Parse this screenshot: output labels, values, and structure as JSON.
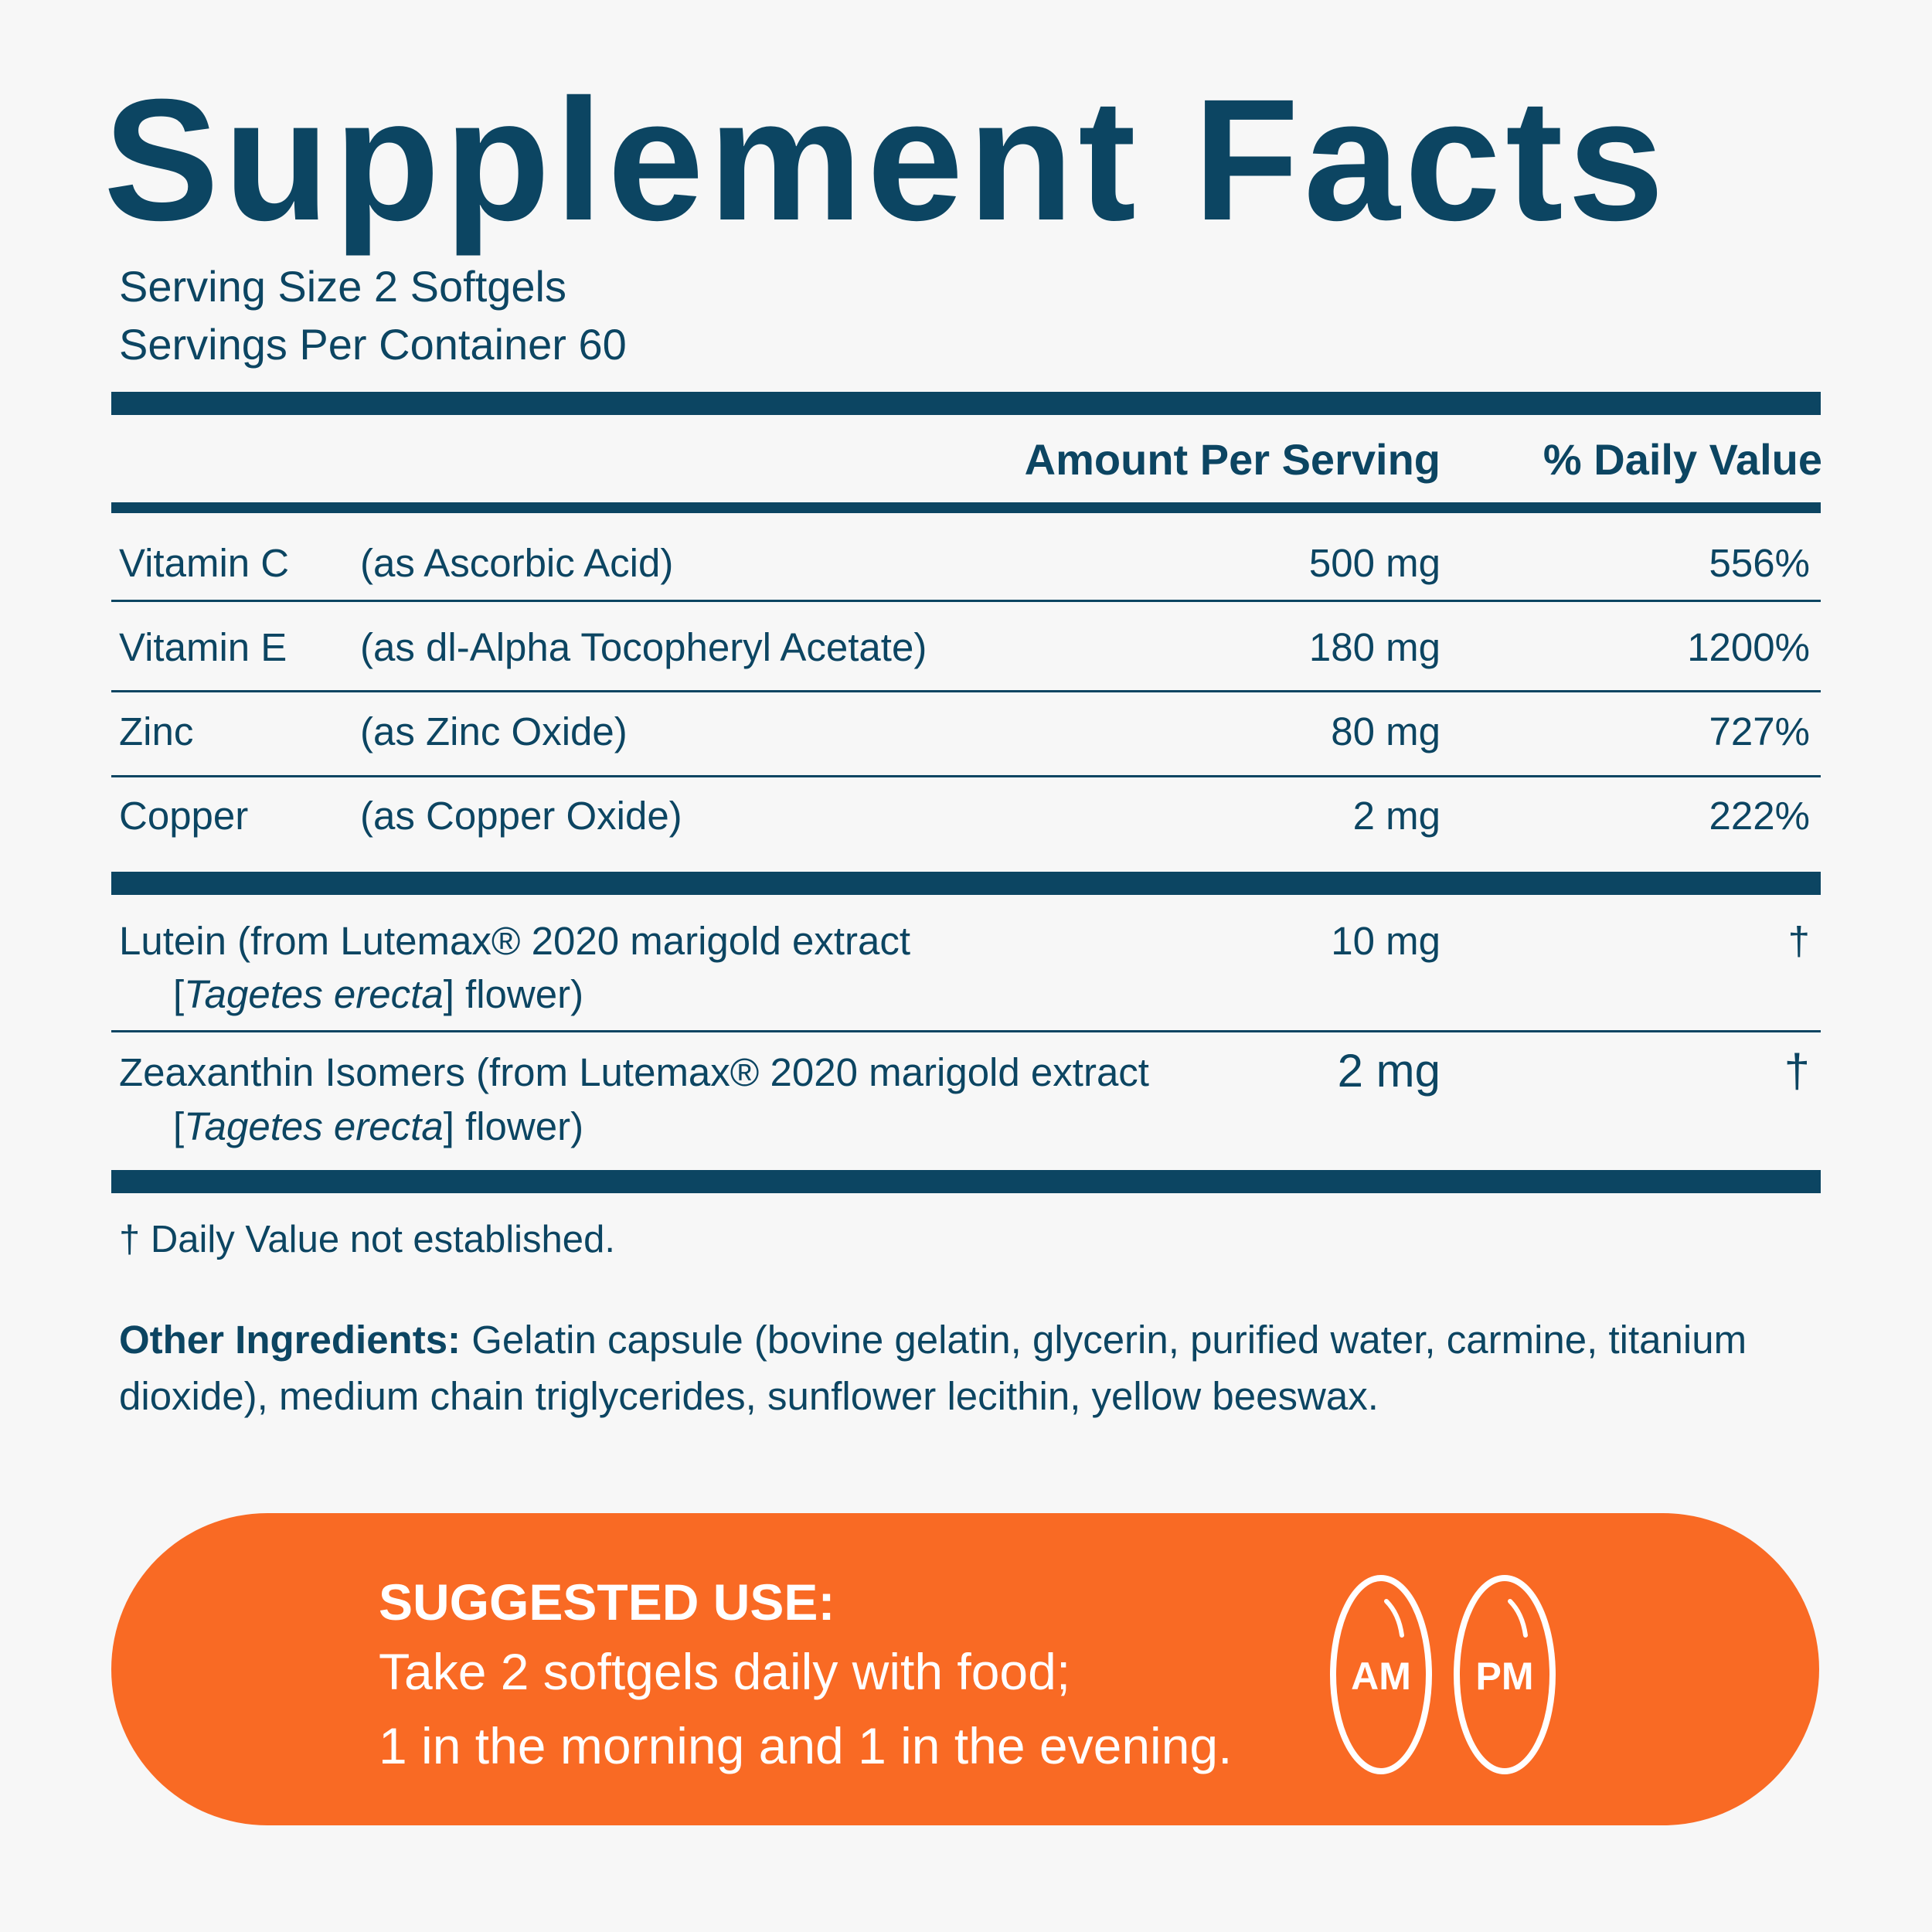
{
  "title": "Supplement Facts",
  "serving_size": "Serving Size 2 Softgels",
  "servings_per_container": "Servings Per Container 60",
  "table_headers": {
    "amount": "Amount Per Serving",
    "daily_value": "% Daily Value"
  },
  "nutrients": [
    {
      "name": "Vitamin C",
      "source": "(as Ascorbic Acid)",
      "amount": "500 mg",
      "dv": "556%"
    },
    {
      "name": "Vitamin E",
      "source": "(as dl-Alpha Tocopheryl Acetate)",
      "amount": "180 mg",
      "dv": "1200%"
    },
    {
      "name": "Zinc",
      "source": "(as Zinc Oxide)",
      "amount": "80 mg",
      "dv": "727%"
    },
    {
      "name": "Copper",
      "source": "(as Copper Oxide)",
      "amount": "2 mg",
      "dv": "222%"
    }
  ],
  "botanicals": [
    {
      "line1": "Lutein (from Lutemax® 2020 marigold extract",
      "species": "Tagetes erecta",
      "line2_suffix": "] flower)",
      "amount": "10 mg",
      "dv": "†"
    },
    {
      "line1": "Zeaxanthin Isomers (from Lutemax® 2020 marigold extract",
      "species": "Tagetes erecta",
      "line2_suffix": "] flower)",
      "amount": "2 mg",
      "dv": "†"
    }
  ],
  "bracket_open": "[",
  "footnote": "† Daily Value not established.",
  "other_ingredients": {
    "label": "Other Ingredients:",
    "text": " Gelatin capsule (bovine gelatin, glycerin, purified water, carmine, titanium dioxide), medium chain triglycerides, sunflower lecithin, yellow beeswax."
  },
  "suggested_use": {
    "title": "SUGGESTED USE:",
    "line1": "Take 2 softgels daily with food;",
    "line2": "1 in the morning and 1 in the evening.",
    "am_label": "AM",
    "pm_label": "PM"
  },
  "colors": {
    "navy": "#0c4562",
    "orange": "#f96a24",
    "background": "#f7f7f7"
  }
}
